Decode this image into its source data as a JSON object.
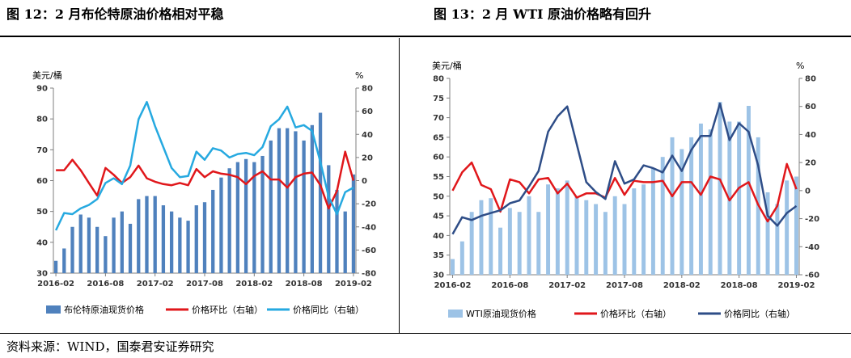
{
  "titles": {
    "left": "图 12：2 月布伦特原油价格相对平稳",
    "right": "图 13：2 月 WTI 原油价格略有回升"
  },
  "source": "资料来源：WIND，国泰君安证券研究",
  "chart_data": [
    {
      "type": "bar+line",
      "left_unit": "美元/桶",
      "right_unit": "%",
      "ylim": [
        30,
        90
      ],
      "ylim_right": [
        -80,
        80
      ],
      "yticks": [
        30,
        40,
        50,
        60,
        70,
        80,
        90
      ],
      "yticks_right": [
        -80,
        -60,
        -40,
        -20,
        0,
        20,
        40,
        60,
        80
      ],
      "x_tick_labels": [
        "2016-02",
        "2016-08",
        "2017-02",
        "2017-08",
        "2018-02",
        "2018-08",
        "2019-02"
      ],
      "x_tick_index": [
        0,
        6,
        12,
        18,
        24,
        30,
        36
      ],
      "categories": [
        "2016-02",
        "2016-03",
        "2016-04",
        "2016-05",
        "2016-06",
        "2016-07",
        "2016-08",
        "2016-09",
        "2016-10",
        "2016-11",
        "2016-12",
        "2017-01",
        "2017-02",
        "2017-03",
        "2017-04",
        "2017-05",
        "2017-06",
        "2017-07",
        "2017-08",
        "2017-09",
        "2017-10",
        "2017-11",
        "2017-12",
        "2018-01",
        "2018-02",
        "2018-03",
        "2018-04",
        "2018-05",
        "2018-06",
        "2018-07",
        "2018-08",
        "2018-09",
        "2018-10",
        "2018-11",
        "2018-12",
        "2019-01",
        "2019-02"
      ],
      "series": [
        {
          "name": "布伦特原油现货价格",
          "kind": "bar",
          "axis": "left",
          "color": "#4f81bd",
          "values": [
            34,
            38,
            45,
            49,
            48,
            45,
            42,
            48,
            50,
            46,
            54,
            55,
            55,
            52,
            50,
            48,
            47,
            52,
            53,
            57,
            61,
            64,
            66,
            67,
            66,
            68,
            73,
            77,
            77,
            76,
            73,
            78,
            82,
            65,
            57,
            50,
            62
          ]
        },
        {
          "name": "价格环比（右轴）",
          "kind": "line",
          "axis": "right",
          "color": "#e0171b",
          "values": [
            9,
            9,
            18,
            9,
            -2,
            -13,
            11,
            5,
            -2,
            3,
            13,
            2,
            -1,
            -3,
            -4,
            -2,
            -4,
            10,
            3,
            8,
            6,
            5,
            3,
            -3,
            4,
            8,
            1,
            1,
            -6,
            3,
            6,
            7,
            -4,
            -24,
            -9,
            25,
            0
          ]
        },
        {
          "name": "价格同比（右轴）",
          "kind": "line",
          "axis": "right",
          "color": "#26a9e0",
          "values": [
            -43,
            -28,
            -29,
            -24,
            -21,
            -16,
            -2,
            2,
            -3,
            13,
            53,
            68,
            47,
            29,
            11,
            3,
            4,
            25,
            18,
            28,
            26,
            20,
            23,
            24,
            22,
            29,
            47,
            53,
            64,
            46,
            48,
            43,
            16,
            -14,
            -29,
            -10,
            -6
          ]
        }
      ]
    },
    {
      "type": "bar+line",
      "left_unit": "美元/桶",
      "right_unit": "%",
      "ylim": [
        30,
        80
      ],
      "ylim_right": [
        -60,
        80
      ],
      "yticks": [
        30,
        35,
        40,
        45,
        50,
        55,
        60,
        65,
        70,
        75,
        80
      ],
      "yticks_right": [
        -60,
        -40,
        -20,
        0,
        20,
        40,
        60,
        80
      ],
      "x_tick_labels": [
        "2016-02",
        "2016-08",
        "2017-02",
        "2017-08",
        "2018-02",
        "2018-08",
        "2019-02"
      ],
      "x_tick_index": [
        0,
        6,
        12,
        18,
        24,
        30,
        36
      ],
      "categories": [
        "2016-02",
        "2016-03",
        "2016-04",
        "2016-05",
        "2016-06",
        "2016-07",
        "2016-08",
        "2016-09",
        "2016-10",
        "2016-11",
        "2016-12",
        "2017-01",
        "2017-02",
        "2017-03",
        "2017-04",
        "2017-05",
        "2017-06",
        "2017-07",
        "2017-08",
        "2017-09",
        "2017-10",
        "2017-11",
        "2017-12",
        "2018-01",
        "2018-02",
        "2018-03",
        "2018-04",
        "2018-05",
        "2018-06",
        "2018-07",
        "2018-08",
        "2018-09",
        "2018-10",
        "2018-11",
        "2018-12",
        "2019-01",
        "2019-02"
      ],
      "series": [
        {
          "name": "WTI原油现货价格",
          "kind": "bar",
          "axis": "left",
          "color": "#9dc3e6",
          "values": [
            34,
            38.5,
            46,
            49,
            49.5,
            42,
            47,
            46,
            50,
            46,
            53,
            52,
            54,
            50,
            49,
            48,
            46,
            50,
            48,
            52,
            53,
            57,
            60,
            65,
            62,
            65,
            68.5,
            67,
            74,
            69,
            69,
            73,
            65,
            51,
            48,
            54,
            55
          ]
        },
        {
          "name": "价格环比（右轴）",
          "kind": "line",
          "axis": "right",
          "color": "#e0171b",
          "values": [
            0,
            13,
            20,
            4,
            1,
            -15,
            8,
            6,
            -2,
            8,
            9,
            -2,
            5,
            -5,
            -2,
            -2,
            -5,
            9,
            -3,
            7,
            6,
            6,
            7,
            -4,
            6,
            6,
            -3,
            10,
            8,
            -7,
            2,
            6,
            -10,
            -22,
            -11,
            19,
            1
          ]
        },
        {
          "name": "价格同比（右轴）",
          "kind": "line",
          "axis": "right",
          "color": "#2e4d87",
          "values": [
            -31,
            -19,
            -21,
            -18,
            -16,
            -14,
            -9,
            -7,
            3,
            14,
            42,
            53,
            60,
            33,
            6,
            -1,
            -6,
            21,
            5,
            8,
            18,
            16,
            13,
            25,
            14,
            29,
            39,
            39,
            62,
            36,
            48,
            42,
            18,
            -18,
            -25,
            -16,
            -11
          ]
        }
      ]
    }
  ]
}
